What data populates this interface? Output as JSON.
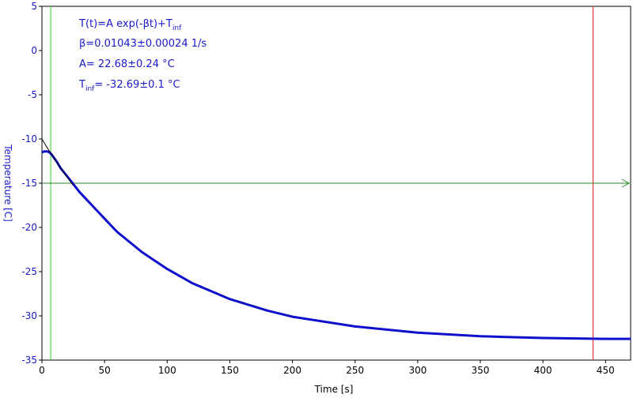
{
  "chart_data": {
    "type": "scatter",
    "xlabel": "Time [s]",
    "ylabel": "Temperature [C]",
    "xlim": [
      0,
      470
    ],
    "ylim": [
      -35,
      5
    ],
    "x_ticks": [
      0,
      50,
      100,
      150,
      200,
      250,
      300,
      350,
      400,
      450
    ],
    "y_ticks": [
      5,
      0,
      -5,
      -10,
      -15,
      -20,
      -25,
      -30,
      -35
    ],
    "grid": false,
    "annotations": {
      "model_prefix": "T(t)=A exp(-βt)+T",
      "model_sub": "inf",
      "beta": "β=0.01043±0.00024 1/s",
      "amplitude": "A= 22.68±0.24 °C",
      "tinf_prefix": "T",
      "tinf_sub": "inf",
      "tinf_value": "= -32.69±0.1 °C"
    },
    "fit": {
      "A": 22.68,
      "beta": 0.01043,
      "T_inf": -32.69
    },
    "cursors": {
      "left_x": 7,
      "right_x": 440,
      "horizontal_y": -15
    },
    "series": [
      {
        "x": [
          0,
          2,
          4,
          6,
          8,
          10,
          12,
          15,
          20,
          25,
          30,
          40,
          50,
          60,
          80,
          100,
          120,
          150,
          180,
          200,
          250,
          300,
          350,
          400,
          450,
          470
        ],
        "y": [
          -11.5,
          -11.4,
          -11.4,
          -11.5,
          -11.8,
          -12.2,
          -12.6,
          -13.3,
          -14.2,
          -15.1,
          -16.0,
          -17.5,
          -19.0,
          -20.5,
          -22.8,
          -24.7,
          -26.3,
          -28.1,
          -29.4,
          -30.1,
          -31.2,
          -31.9,
          -32.3,
          -32.5,
          -32.6,
          -32.6
        ],
        "color": "#1010cc"
      }
    ],
    "colors": {
      "data": "#1010cc",
      "fit": "#000000",
      "left_cursor": "#33cc33",
      "right_cursor": "#dd2222",
      "horizontal_cursor": "#228822",
      "tick_y": "#1a1acc",
      "tick_x": "#000000"
    }
  }
}
